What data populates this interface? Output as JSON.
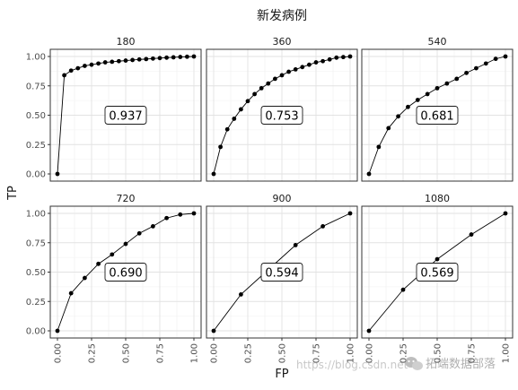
{
  "title": "新发病例",
  "x_axis_label": "FP",
  "y_axis_label": "TP",
  "watermark_url": "https://blog.csdn.net",
  "watermark_brand": "拓端数据部落",
  "watermark_icon": "wechat-icon",
  "chart_data": {
    "type": "line",
    "facet_layout": "2x3",
    "xlim": [
      0,
      1
    ],
    "ylim": [
      0,
      1
    ],
    "x_ticks": [
      "0.00",
      "0.25",
      "0.50",
      "0.75",
      "1.00"
    ],
    "y_ticks": [
      "0.00",
      "0.25",
      "0.50",
      "0.75",
      "1.00"
    ],
    "grid": true,
    "panels": [
      {
        "label": "180",
        "auc": "0.937",
        "x": [
          0,
          0.05,
          0.1,
          0.15,
          0.2,
          0.25,
          0.3,
          0.35,
          0.4,
          0.45,
          0.5,
          0.55,
          0.6,
          0.65,
          0.7,
          0.75,
          0.8,
          0.85,
          0.9,
          0.95,
          1.0
        ],
        "y": [
          0,
          0.84,
          0.88,
          0.9,
          0.92,
          0.93,
          0.94,
          0.95,
          0.955,
          0.96,
          0.965,
          0.97,
          0.975,
          0.978,
          0.982,
          0.986,
          0.99,
          0.993,
          0.996,
          0.998,
          1.0
        ]
      },
      {
        "label": "360",
        "auc": "0.753",
        "x": [
          0,
          0.05,
          0.1,
          0.15,
          0.2,
          0.25,
          0.3,
          0.35,
          0.4,
          0.45,
          0.5,
          0.55,
          0.6,
          0.65,
          0.7,
          0.75,
          0.8,
          0.85,
          0.9,
          0.95,
          1.0
        ],
        "y": [
          0,
          0.23,
          0.38,
          0.47,
          0.55,
          0.62,
          0.68,
          0.73,
          0.77,
          0.81,
          0.84,
          0.87,
          0.89,
          0.91,
          0.93,
          0.95,
          0.96,
          0.975,
          0.99,
          0.995,
          1.0
        ]
      },
      {
        "label": "540",
        "auc": "0.681",
        "x": [
          0,
          0.0714,
          0.1429,
          0.2143,
          0.2857,
          0.3571,
          0.4286,
          0.5,
          0.5714,
          0.6429,
          0.7143,
          0.7857,
          0.8571,
          0.9286,
          1.0
        ],
        "y": [
          0,
          0.23,
          0.39,
          0.49,
          0.57,
          0.63,
          0.68,
          0.73,
          0.77,
          0.81,
          0.86,
          0.9,
          0.94,
          0.98,
          1.0
        ]
      },
      {
        "label": "720",
        "auc": "0.690",
        "x": [
          0,
          0.1,
          0.2,
          0.3,
          0.4,
          0.5,
          0.6,
          0.7,
          0.8,
          0.9,
          1.0
        ],
        "y": [
          0,
          0.32,
          0.45,
          0.57,
          0.65,
          0.74,
          0.83,
          0.89,
          0.96,
          0.99,
          1.0
        ]
      },
      {
        "label": "900",
        "auc": "0.594",
        "x": [
          0,
          0.2,
          0.4,
          0.6,
          0.8,
          1.0
        ],
        "y": [
          0,
          0.31,
          0.52,
          0.73,
          0.89,
          1.0
        ]
      },
      {
        "label": "1080",
        "auc": "0.569",
        "x": [
          0,
          0.25,
          0.5,
          0.75,
          1.0
        ],
        "y": [
          0,
          0.35,
          0.61,
          0.82,
          1.0
        ]
      }
    ]
  }
}
